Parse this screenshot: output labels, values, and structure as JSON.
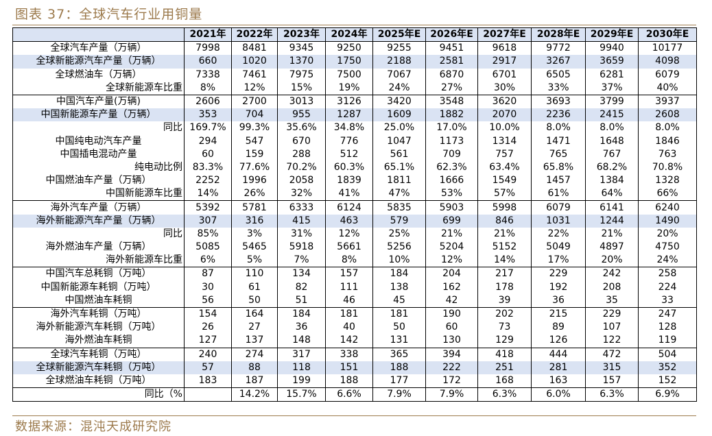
{
  "title": "图表 37：全球汽车行业用铜量",
  "table": {
    "header": [
      "2021年",
      "2022年",
      "2023年",
      "2024年",
      "2025年E",
      "2026年E",
      "2027年E",
      "2028年E",
      "2029年E",
      "2030年E"
    ],
    "rows": [
      {
        "label": "全球汽车产量（万辆）",
        "values": [
          7998,
          8481,
          9345,
          9250,
          9255,
          9451,
          9618,
          9772,
          9940,
          10177
        ]
      },
      {
        "label": "全球新能源汽车产量（万辆）",
        "values": [
          660,
          1020,
          1370,
          1750,
          2188,
          2581,
          2917,
          3267,
          3659,
          4098
        ]
      },
      {
        "label": "全球燃油车（万辆）",
        "values": [
          7338,
          7461,
          7975,
          7500,
          7067,
          6870,
          6701,
          6505,
          6281,
          6079
        ]
      },
      {
        "label": "全球新能源车比重",
        "values": [
          "8%",
          "12%",
          "15%",
          "19%",
          "24%",
          "27%",
          "30%",
          "33%",
          "37%",
          "40%"
        ]
      },
      {
        "label": "中国汽车产量(万辆)",
        "values": [
          2606,
          2700,
          3013,
          3126,
          3420,
          3548,
          3620,
          3693,
          3799,
          3937
        ]
      },
      {
        "label": "中国新能源车产量（万辆）",
        "values": [
          353,
          704,
          955,
          1287,
          1609,
          1882,
          2070,
          2236,
          2415,
          2608
        ]
      },
      {
        "label": "同比",
        "values": [
          "169.7%",
          "99.3%",
          "35.6%",
          "34.8%",
          "25.0%",
          "17.0%",
          "10.0%",
          "8.0%",
          "8.0%",
          "8.0%"
        ]
      },
      {
        "label": "中国纯电动汽车产量",
        "values": [
          294,
          547,
          670,
          776,
          1047,
          1173,
          1314,
          1471,
          1648,
          1846
        ]
      },
      {
        "label": "中国插电混动产量",
        "values": [
          60,
          159,
          288,
          512,
          561,
          709,
          757,
          765,
          767,
          763
        ]
      },
      {
        "label": "纯电动比例",
        "values": [
          "83.3%",
          "77.6%",
          "70.2%",
          "60.3%",
          "65.1%",
          "62.3%",
          "63.4%",
          "65.8%",
          "68.2%",
          "70.8%"
        ]
      },
      {
        "label": "中国燃油车产量（万辆）",
        "values": [
          2252,
          1996,
          2058,
          1839,
          1811,
          1666,
          1549,
          1457,
          1384,
          1328
        ]
      },
      {
        "label": "中国新能源车比重",
        "values": [
          "14%",
          "26%",
          "32%",
          "41%",
          "47%",
          "53%",
          "57%",
          "61%",
          "64%",
          "66%"
        ]
      },
      {
        "label": "海外汽车产量（万辆）",
        "values": [
          5392,
          5781,
          6333,
          6124,
          5835,
          5903,
          5998,
          6079,
          6141,
          6240
        ]
      },
      {
        "label": "海外新能源汽车产量（万辆）",
        "values": [
          307,
          316,
          415,
          463,
          579,
          699,
          846,
          1031,
          1244,
          1490
        ]
      },
      {
        "label": "同比",
        "values": [
          "85%",
          "3%",
          "31%",
          "12%",
          "25%",
          "21%",
          "21%",
          "22%",
          "21%",
          "20%"
        ]
      },
      {
        "label": "海外燃油车产量（万辆）",
        "values": [
          5085,
          5465,
          5918,
          5661,
          5256,
          5204,
          5152,
          5049,
          4897,
          4750
        ]
      },
      {
        "label": "海外新能源车比重",
        "values": [
          "6%",
          "5%",
          "7%",
          "8%",
          "10%",
          "12%",
          "14%",
          "17%",
          "20%",
          "24%"
        ]
      },
      {
        "label": "中国汽车总耗铜（万吨）",
        "values": [
          87,
          110,
          134,
          157,
          184,
          204,
          217,
          229,
          242,
          258
        ]
      },
      {
        "label": "中国新能源车耗铜（万吨）",
        "values": [
          30,
          61,
          82,
          111,
          138,
          162,
          178,
          192,
          208,
          224
        ]
      },
      {
        "label": "中国燃油车耗铜",
        "values": [
          56,
          50,
          51,
          46,
          45,
          42,
          39,
          36,
          35,
          33
        ]
      },
      {
        "label": "海外汽车耗铜（万吨）",
        "values": [
          154,
          164,
          184,
          181,
          181,
          190,
          202,
          215,
          229,
          247
        ]
      },
      {
        "label": "海外新能源汽车耗铜（万吨）",
        "values": [
          26,
          27,
          36,
          40,
          50,
          60,
          73,
          89,
          107,
          128
        ]
      },
      {
        "label": "海外燃油车耗铜",
        "values": [
          127,
          137,
          148,
          142,
          131,
          130,
          129,
          126,
          122,
          119
        ]
      },
      {
        "label": "全球汽车耗铜（万吨）",
        "values": [
          240,
          274,
          317,
          338,
          365,
          394,
          418,
          444,
          472,
          504
        ]
      },
      {
        "label": "全球新能源汽车耗铜（万吨）",
        "values": [
          57,
          88,
          118,
          151,
          188,
          222,
          251,
          281,
          315,
          352
        ]
      },
      {
        "label": "全球燃油车耗铜（万吨）",
        "values": [
          183,
          187,
          199,
          188,
          177,
          172,
          168,
          163,
          157,
          152
        ]
      },
      {
        "label": "同比（%",
        "values": [
          null,
          "14.2%",
          "15.7%",
          "6.6%",
          "7.9%",
          "7.9%",
          "6.3%",
          "6.0%",
          "6.3%",
          "6.9%"
        ]
      }
    ]
  },
  "source": "数据来源：混沌天成研究院"
}
